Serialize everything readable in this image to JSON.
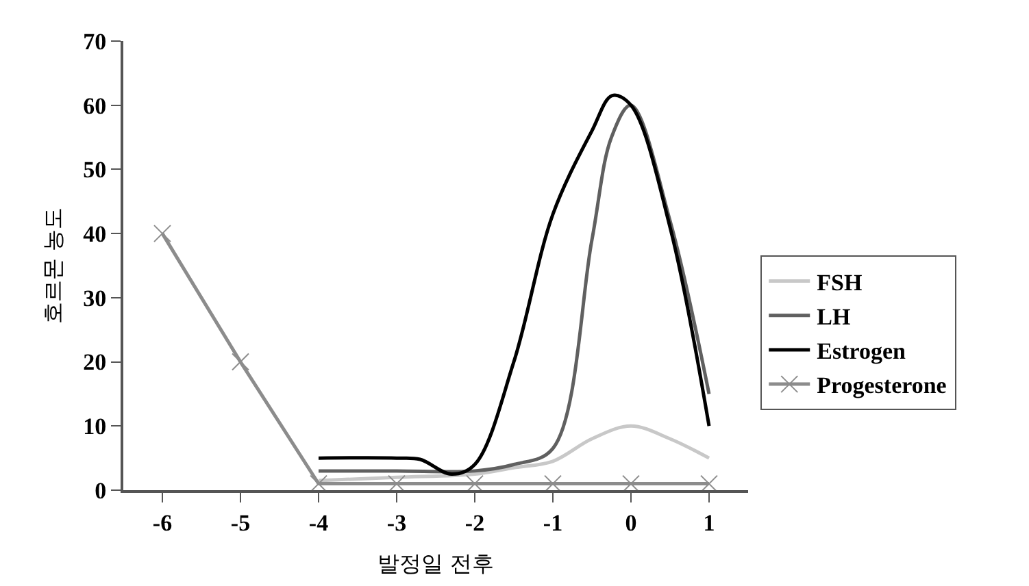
{
  "chart_data": {
    "type": "line",
    "xlabel": "발정일 전후",
    "ylabel": "호르몬 농도",
    "xlim": [
      -6.5,
      1.5
    ],
    "xticks": [
      -6,
      -5,
      -4,
      -3,
      -2,
      -1,
      0,
      1
    ],
    "ylim": [
      0,
      70
    ],
    "yticks": [
      0,
      10,
      20,
      30,
      40,
      50,
      60,
      70
    ],
    "grid": false,
    "legend": "right",
    "marker": "none",
    "series": [
      {
        "name": "FSH",
        "color": "#c8c8c8",
        "x": [
          -4,
          -3,
          -2,
          -1.5,
          -1,
          -0.5,
          0,
          0.5,
          1
        ],
        "values": [
          1.5,
          2,
          2.5,
          3.5,
          4.5,
          8,
          10,
          8,
          5
        ]
      },
      {
        "name": "LH",
        "color": "#606060",
        "x": [
          -4,
          -3,
          -2,
          -1.5,
          -1,
          -0.5,
          -0.25,
          0,
          0.5,
          1
        ],
        "values": [
          3,
          3,
          3,
          4,
          6.5,
          39,
          55,
          60,
          42,
          15
        ]
      },
      {
        "name": "Estrogen",
        "color": "#000000",
        "x": [
          -4,
          -3,
          -2.7,
          -2.3,
          -2,
          -1.5,
          -1,
          -0.5,
          -0.24,
          0,
          0.5,
          1
        ],
        "values": [
          5,
          5,
          4.8,
          2.5,
          4,
          20,
          43,
          56,
          61.5,
          60,
          41,
          10
        ]
      },
      {
        "name": "Progesterone",
        "color": "#8c8c8c",
        "marker": "cross",
        "x": [
          -6,
          -5,
          -4,
          -3,
          -2,
          -1,
          0,
          1
        ],
        "values": [
          40,
          20,
          1,
          1,
          1,
          1,
          1,
          1
        ]
      }
    ]
  }
}
